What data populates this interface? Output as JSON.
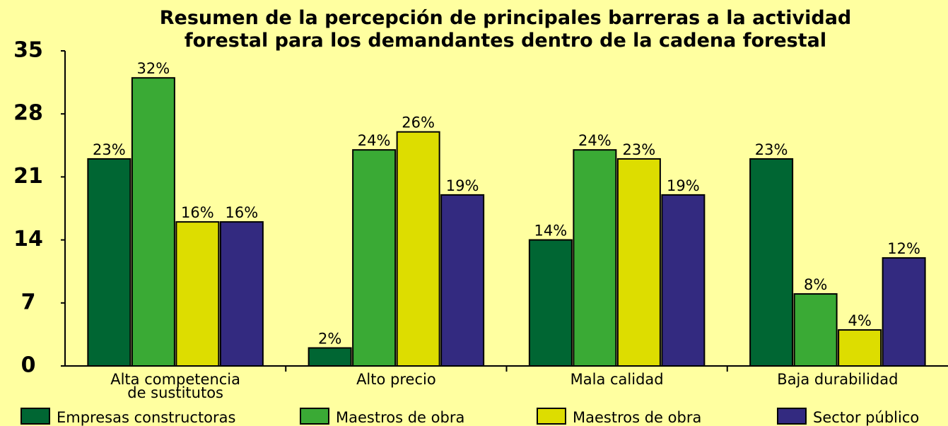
{
  "chart_data": {
    "type": "bar",
    "title": "Resumen de la percepción de principales barreras a la actividad\nforestal para los demandantes dentro de la cadena forestal",
    "categories": [
      "Alta competencia\nde sustitutos",
      "Alto precio",
      "Mala calidad",
      "Baja durabilidad"
    ],
    "series": [
      {
        "name": "Empresas constructoras",
        "color": "#006633",
        "values": [
          23,
          2,
          14,
          23
        ],
        "value_labels": [
          "23%",
          "2%",
          "14%",
          "23%"
        ]
      },
      {
        "name": "Maestros de obra",
        "color": "#3aaa35",
        "values": [
          32,
          24,
          24,
          8
        ],
        "value_labels": [
          "32%",
          "24%",
          "24%",
          "8%"
        ]
      },
      {
        "name": "Maestros de obra",
        "color": "#dddd00",
        "values": [
          16,
          26,
          23,
          4
        ],
        "value_labels": [
          "16%",
          "26%",
          "23%",
          "4%"
        ]
      },
      {
        "name": "Sector público",
        "color": "#332a80",
        "values": [
          16,
          19,
          19,
          12
        ],
        "value_labels": [
          "16%",
          "19%",
          "19%",
          "12%"
        ]
      }
    ],
    "ylim": [
      0,
      35
    ],
    "yticks": [
      0,
      7,
      14,
      21,
      28,
      35
    ],
    "grid": false,
    "legend": "bottom"
  }
}
